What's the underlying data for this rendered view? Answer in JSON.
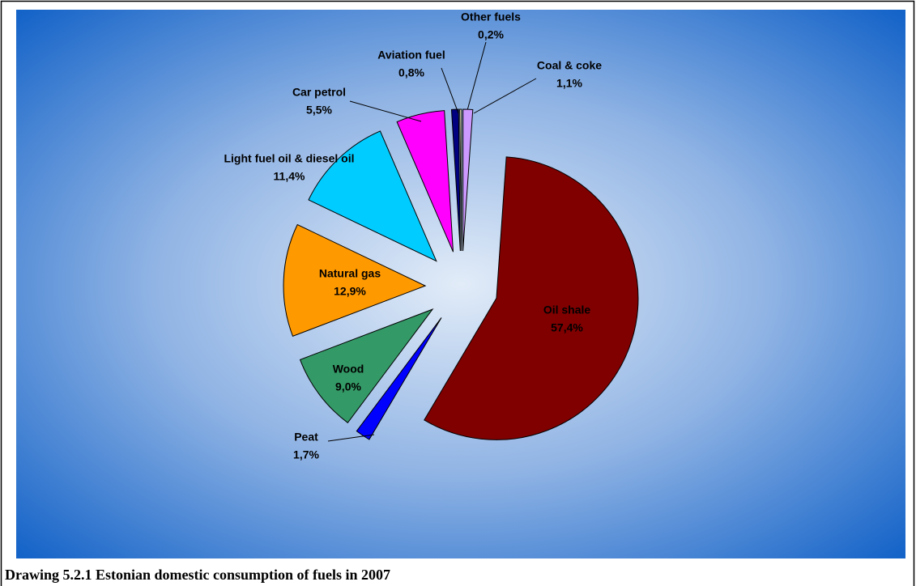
{
  "chart_data": {
    "type": "pie",
    "categories": [
      "Oil shale",
      "Peat",
      "Wood",
      "Natural gas",
      "Light fuel oil & diesel oil",
      "Car petrol",
      "Aviation fuel",
      "Other fuels",
      "Coal & coke"
    ],
    "values": [
      57.4,
      1.7,
      9.0,
      12.9,
      11.4,
      5.5,
      0.8,
      0.2,
      1.1
    ],
    "value_labels": [
      "57,4%",
      "1,7%",
      "9,0%",
      "12,9%",
      "11,4%",
      "5,5%",
      "0,8%",
      "0,2%",
      "1,1%"
    ],
    "colors": [
      "#800000",
      "#0000ff",
      "#339966",
      "#ff9900",
      "#00ccff",
      "#ff00ff",
      "#000080",
      "#ffffcc",
      "#cc99ff"
    ]
  },
  "caption": "Drawing 5.2.1 Estonian domestic consumption of fuels in 2007"
}
